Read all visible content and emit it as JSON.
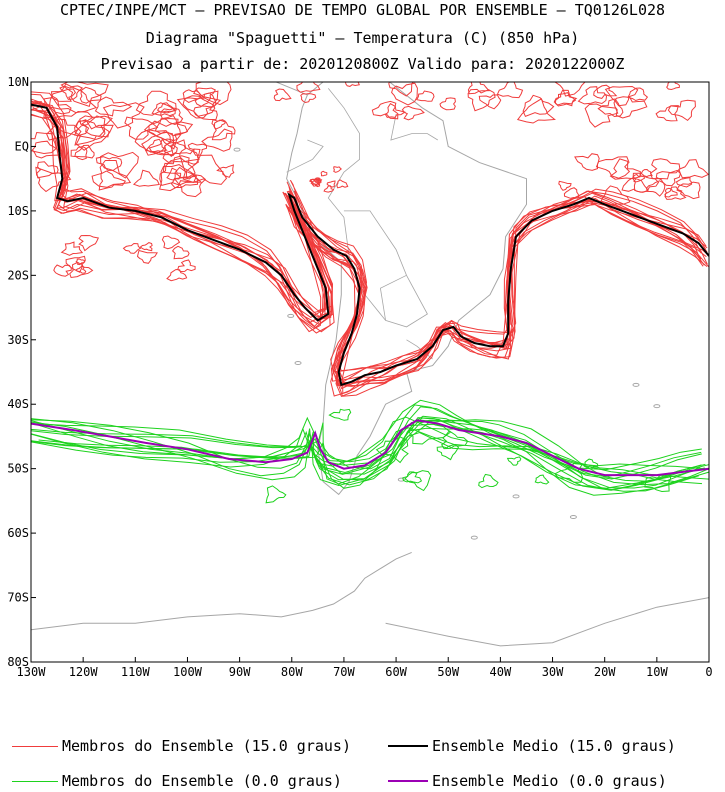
{
  "titles": {
    "line1": "CPTEC/INPE/MCT – PREVISAO DE TEMPO GLOBAL POR ENSEMBLE – TQ0126L028",
    "line2": "Diagrama \"Spaguetti\" – Temperatura (C) (850 hPa)",
    "line3": "Previsao a partir de: 2020120800Z  Valido para: 2020122000Z"
  },
  "map": {
    "lat_labels": [
      "10N",
      "EQ",
      "10S",
      "20S",
      "30S",
      "40S",
      "50S",
      "60S",
      "70S",
      "80S"
    ],
    "lon_labels": [
      "130W",
      "120W",
      "110W",
      "100W",
      "90W",
      "80W",
      "70W",
      "60W",
      "50W",
      "40W",
      "30W",
      "20W",
      "10W",
      "0"
    ],
    "lat_range": [
      -80,
      10
    ],
    "lon_range": [
      -130,
      0
    ],
    "colors": {
      "members_15": "#f03c3c",
      "mean_15": "#000000",
      "members_0": "#1ed21e",
      "mean_0": "#9b00b4",
      "coast": "#a6a6a6"
    }
  },
  "legend": {
    "members_15": "Membros do Ensemble (15.0 graus)",
    "mean_15": "Ensemble Medio (15.0 graus)",
    "members_0": "Membros do Ensemble (0.0 graus)",
    "mean_0": "Ensemble Medio (0.0 graus)"
  }
}
